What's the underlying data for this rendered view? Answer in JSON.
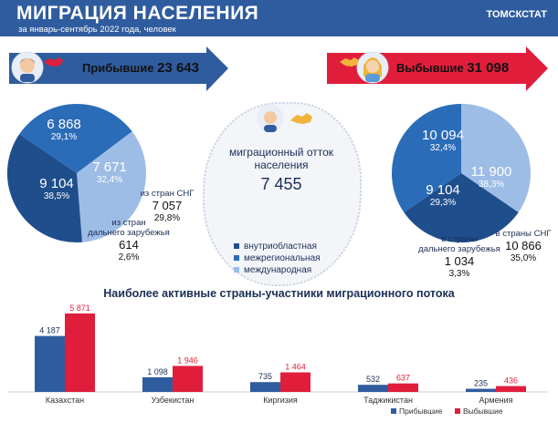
{
  "header": {
    "title": "МИГРАЦИЯ НАСЕЛЕНИЯ",
    "subtitle": "за январь-сентябрь 2022 года, человек",
    "brand": "ТОМСКСТАТ"
  },
  "arrivals": {
    "label": "Прибывшие",
    "total": "23 643"
  },
  "departures": {
    "label": "Выбывшие",
    "total": "31 098"
  },
  "center": {
    "line1": "миграционный отток",
    "line2": "населения",
    "value": "7 455"
  },
  "colors": {
    "intra": "#1f4e8c",
    "inter": "#2b6cb8",
    "intl": "#9ebde6",
    "arrivals_bar": "#2f5c9e",
    "departures_bar": "#e01e3c",
    "header": "#2f5c9e"
  },
  "left_pie": {
    "slices": [
      {
        "value": "6 868",
        "pct": "29,1%"
      },
      {
        "value": "9 104",
        "pct": "38,5%"
      },
      {
        "value": "7 671",
        "pct": "32,4%"
      }
    ],
    "cis_note": {
      "label": "из стран СНГ",
      "value": "7 057",
      "pct": "29,8%"
    },
    "far_note": {
      "label1": "из стран",
      "label2": "дальнего зарубежья",
      "value": "614",
      "pct": "2,6%"
    }
  },
  "right_pie": {
    "slices": [
      {
        "value": "10 094",
        "pct": "32,4%"
      },
      {
        "value": "9 104",
        "pct": "29,3%"
      },
      {
        "value": "11 900",
        "pct": "38,3%"
      }
    ],
    "far_note": {
      "label1": "в страны",
      "label2": "дальнего зарубежья",
      "value": "1 034",
      "pct": "3,3%"
    },
    "cis_note": {
      "label": "в страны СНГ",
      "value": "10 866",
      "pct": "35,0%"
    }
  },
  "legend": [
    "внутриобластная",
    "межрегиональная",
    "международная"
  ],
  "bar_title": "Наиболее активные страны-участники миграционного потока",
  "chart_data": {
    "type": "bar",
    "categories": [
      "Казахстан",
      "Узбекистан",
      "Киргизия",
      "Таджикистан",
      "Армения"
    ],
    "series": [
      {
        "name": "Прибывшие",
        "values": [
          4187,
          1098,
          735,
          532,
          235
        ],
        "labels": [
          "4 187",
          "1 098",
          "735",
          "532",
          "235"
        ]
      },
      {
        "name": "Выбывшие",
        "values": [
          5871,
          1946,
          1464,
          637,
          436
        ],
        "labels": [
          "5 871",
          "1 946",
          "1 464",
          "637",
          "436"
        ]
      }
    ],
    "ylim": [
      0,
      6000
    ],
    "legend_position": "bottom-right"
  }
}
